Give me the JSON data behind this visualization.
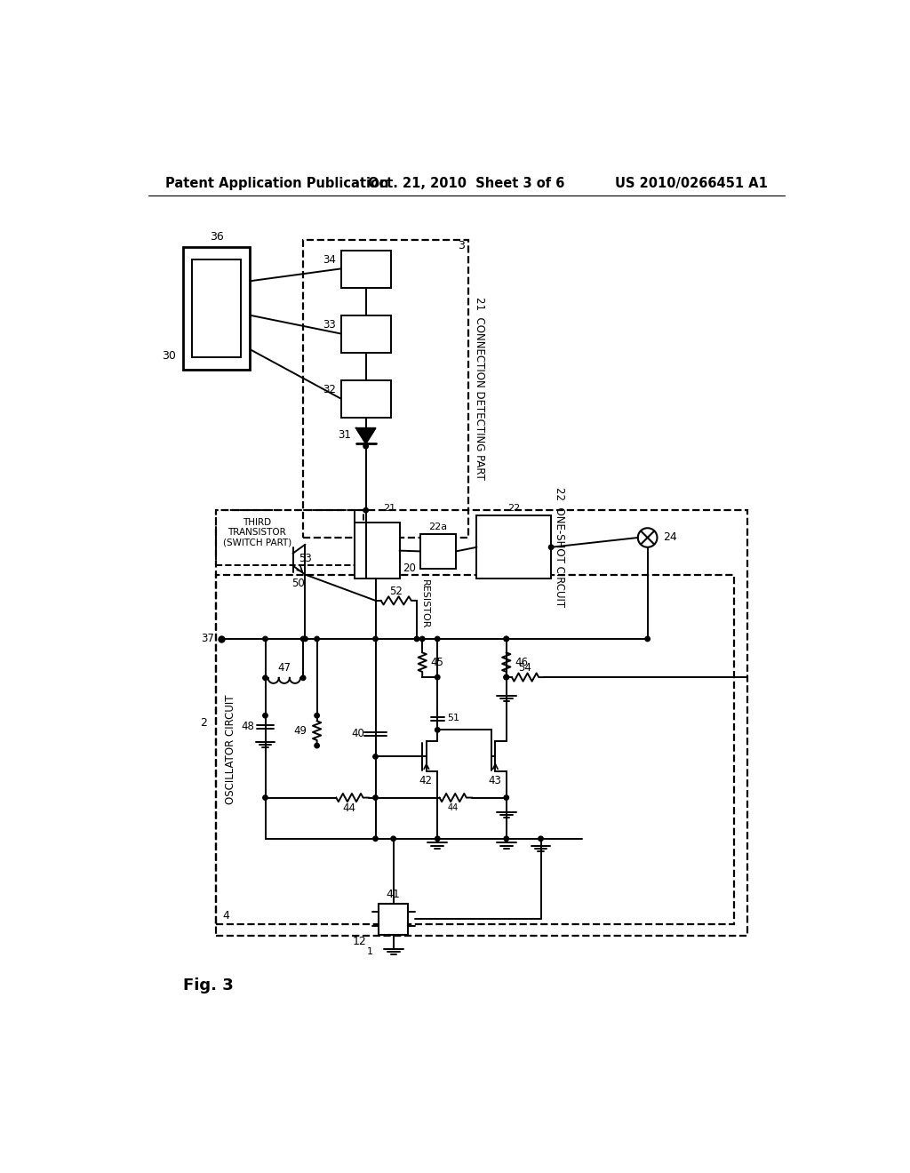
{
  "bg_color": "#ffffff",
  "header_left": "Patent Application Publication",
  "header_center": "Oct. 21, 2010  Sheet 3 of 6",
  "header_right": "US 2010/0266451 A1",
  "fig_label": "Fig. 3"
}
